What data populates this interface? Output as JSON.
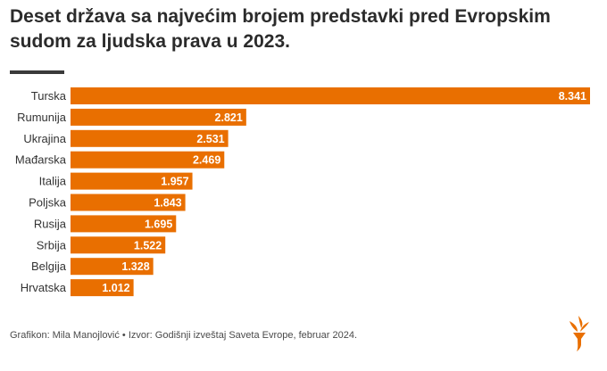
{
  "title": "Deset država sa najvećim brojem predstavki pred Evropskim sudom za ljudska prava u 2023.",
  "footer": "Grafikon: Mila Manojlović • Izvor: Godišnji izveštaj Saveta Evrope, februar 2024.",
  "colors": {
    "bar": "#e96f00",
    "label_on_bar": "#ffffff",
    "category_text": "#333333",
    "title_text": "#2b2b2b",
    "rule": "#3a3a3a",
    "logo": "#e96f00"
  },
  "logo_icon": "torch-logo-icon",
  "chart_data": {
    "type": "bar",
    "orientation": "horizontal",
    "title": "Deset država sa najvećim brojem predstavki pred Evropskim sudom za ljudska prava u 2023.",
    "xlabel": "",
    "ylabel": "",
    "grid": false,
    "legend": "none",
    "xlim": [
      0,
      8341
    ],
    "categories": [
      "Turska",
      "Rumunija",
      "Ukrajina",
      "Mađarska",
      "Italija",
      "Poljska",
      "Rusija",
      "Srbija",
      "Belgija",
      "Hrvatska"
    ],
    "values": [
      8341,
      2821,
      2531,
      2469,
      1957,
      1843,
      1695,
      1522,
      1328,
      1012
    ],
    "value_labels": [
      "8.341",
      "2.821",
      "2.531",
      "2.469",
      "1.957",
      "1.843",
      "1.695",
      "1.522",
      "1.328",
      "1.012"
    ]
  }
}
